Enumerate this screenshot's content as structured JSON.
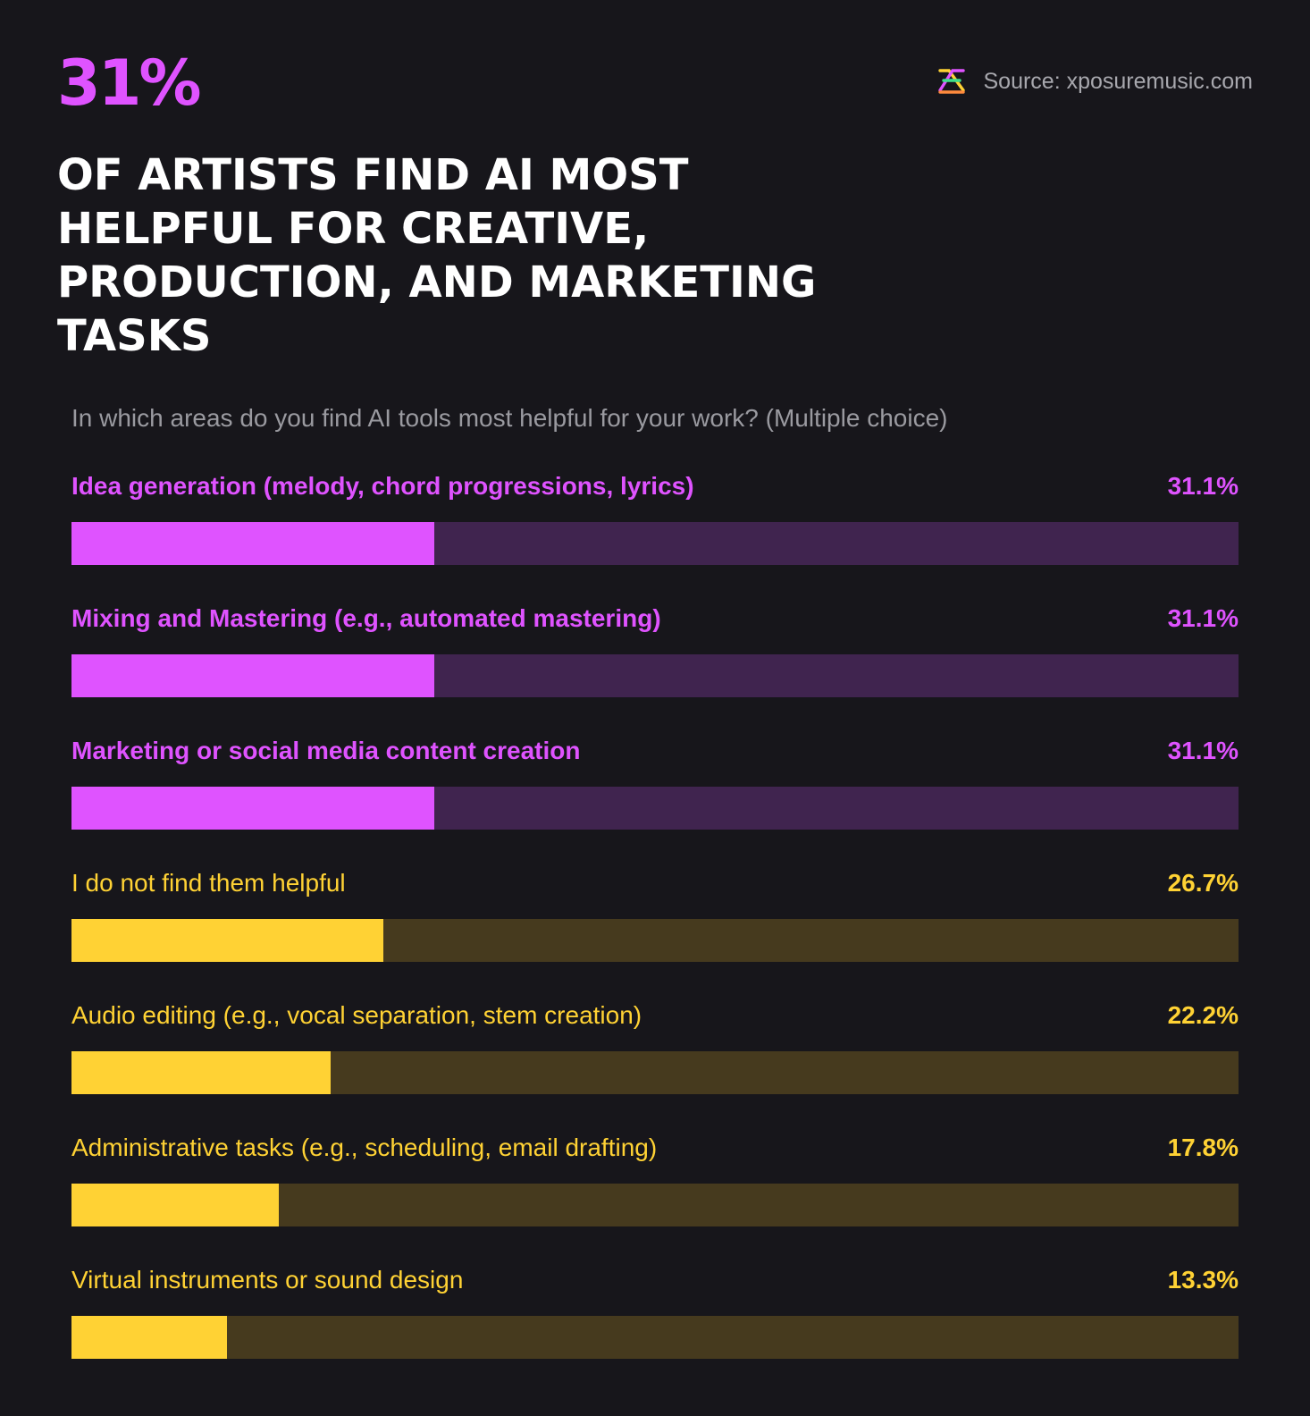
{
  "header": {
    "stat": "31%",
    "source": "Source: xposuremusic.com",
    "headline": "OF ARTISTS FIND AI MOST HELPFUL FOR CREATIVE, PRODUCTION, AND MARKETING TASKS"
  },
  "colors": {
    "background": "#17161b",
    "accent_purple": "#df53ff",
    "track_purple": "#40244f",
    "accent_yellow": "#ffd234",
    "track_yellow": "#463a1e"
  },
  "chart_data": {
    "type": "bar",
    "orientation": "horizontal",
    "title": "In which areas do you find AI tools most helpful for your work? (Multiple choice)",
    "xlim": [
      0,
      100
    ],
    "unit": "%",
    "categories": [
      "Idea generation (melody, chord progressions, lyrics)",
      "Mixing and Mastering (e.g., automated mastering)",
      "Marketing or social media content creation",
      "I do not find them helpful",
      "Audio editing (e.g., vocal separation, stem creation)",
      "Administrative tasks (e.g., scheduling, email drafting)",
      "Virtual instruments or sound design"
    ],
    "values": [
      31.1,
      31.1,
      31.1,
      26.7,
      22.2,
      17.8,
      13.3
    ],
    "value_labels": [
      "31.1%",
      "31.1%",
      "31.1%",
      "26.7%",
      "22.2%",
      "17.8%",
      "13.3%"
    ],
    "highlight": [
      true,
      true,
      true,
      false,
      false,
      false,
      false
    ]
  }
}
